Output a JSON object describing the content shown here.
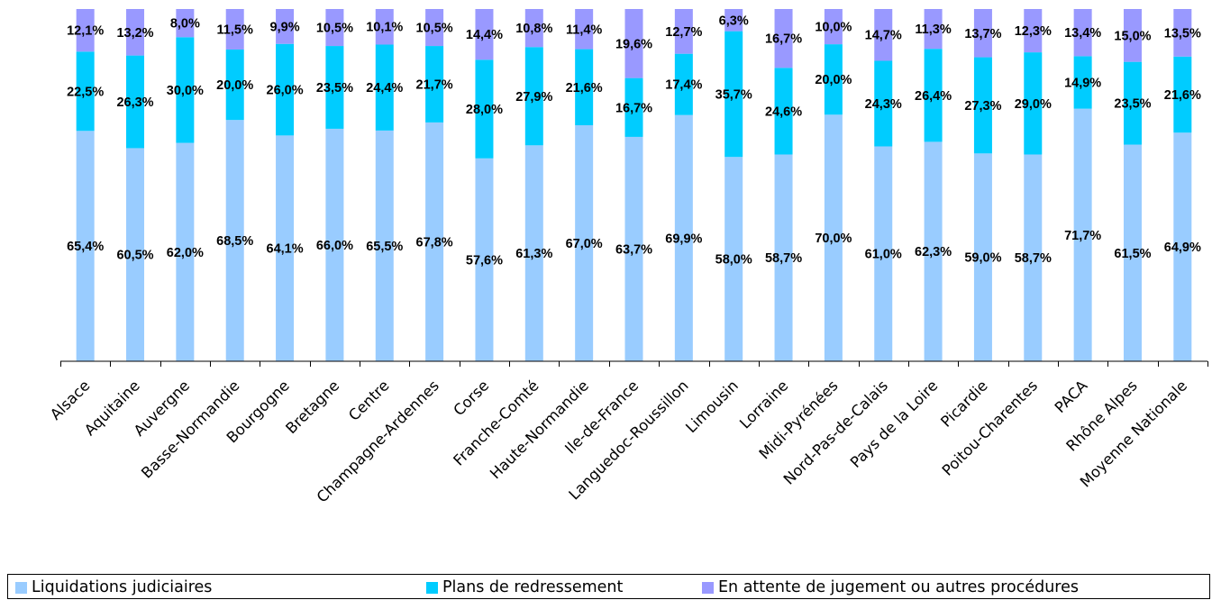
{
  "chart_data": {
    "type": "bar",
    "stacked": true,
    "normalized": true,
    "categories": [
      "Alsace",
      "Aquitaine",
      "Auvergne",
      "Basse-Normandie",
      "Bourgogne",
      "Bretagne",
      "Centre",
      "Champagne-Ardennes",
      "Corse",
      "Franche-Comté",
      "Haute-Normandie",
      "Ile-de-France",
      "Languedoc-Roussillon",
      "Limousin",
      "Lorraine",
      "Midi-Pyrénées",
      "Nord-Pas-de-Calais",
      "Pays de la Loire",
      "Picardie",
      "Poitou-Charentes",
      "PACA",
      "Rhône Alpes",
      "Moyenne Nationale"
    ],
    "series": [
      {
        "name": "Liquidations judiciaires",
        "color": "#99ccff",
        "values": [
          65.4,
          60.5,
          62.0,
          68.5,
          64.1,
          66.0,
          65.5,
          67.8,
          57.6,
          61.3,
          67.0,
          63.7,
          69.9,
          58.0,
          58.7,
          70.0,
          61.0,
          62.3,
          59.0,
          58.7,
          71.7,
          61.5,
          64.9
        ],
        "labels": [
          "65,4%",
          "60,5%",
          "62,0%",
          "68,5%",
          "64,1%",
          "66,0%",
          "65,5%",
          "67,8%",
          "57,6%",
          "61,3%",
          "67,0%",
          "63,7%",
          "69,9%",
          "58,0%",
          "58,7%",
          "70,0%",
          "61,0%",
          "62,3%",
          "59,0%",
          "58,7%",
          "71,7%",
          "61,5%",
          "64,9%"
        ]
      },
      {
        "name": "Plans de redressement",
        "color": "#00ccff",
        "values": [
          22.5,
          26.3,
          30.0,
          20.0,
          26.0,
          23.5,
          24.4,
          21.7,
          28.0,
          27.9,
          21.6,
          16.7,
          17.4,
          35.7,
          24.6,
          20.0,
          24.3,
          26.4,
          27.3,
          29.0,
          14.9,
          23.5,
          21.6
        ],
        "labels": [
          "22,5%",
          "26,3%",
          "30,0%",
          "20,0%",
          "26,0%",
          "23,5%",
          "24,4%",
          "21,7%",
          "28,0%",
          "27,9%",
          "21,6%",
          "16,7%",
          "17,4%",
          "35,7%",
          "24,6%",
          "20,0%",
          "24,3%",
          "26,4%",
          "27,3%",
          "29,0%",
          "14,9%",
          "23,5%",
          "21,6%"
        ]
      },
      {
        "name": "En attente de jugement ou autres procédures",
        "color": "#9999ff",
        "values": [
          12.1,
          13.2,
          8.0,
          11.5,
          9.9,
          10.5,
          10.1,
          10.5,
          14.4,
          10.8,
          11.4,
          19.6,
          12.7,
          6.3,
          16.7,
          10.0,
          14.7,
          11.3,
          13.7,
          12.3,
          13.4,
          15.0,
          13.5
        ],
        "labels": [
          "12,1%",
          "13,2%",
          "8,0%",
          "11,5%",
          "9,9%",
          "10,5%",
          "10,1%",
          "10,5%",
          "14,4%",
          "10,8%",
          "11,4%",
          "19,6%",
          "12,7%",
          "6,3%",
          "16,7%",
          "10,0%",
          "14,7%",
          "11,3%",
          "13,7%",
          "12,3%",
          "13,4%",
          "15,0%",
          "13,5%"
        ]
      }
    ],
    "legend_position": "bottom",
    "grid": false
  }
}
